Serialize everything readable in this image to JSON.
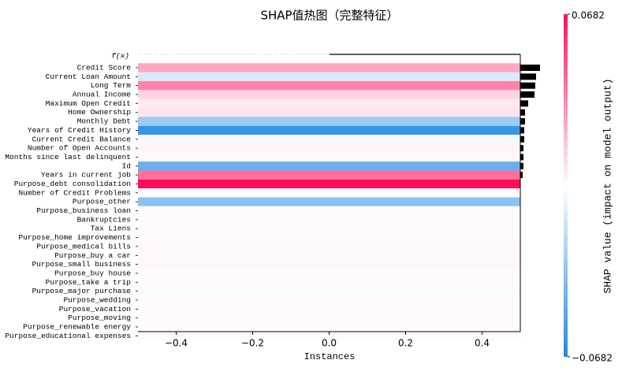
{
  "chart_data": {
    "type": "heatmap",
    "title": "SHAP值热图（完整特征）",
    "xlabel": "Instances",
    "colorbar_label": "SHAP value (impact on model output)",
    "fx_label": "f(x)",
    "features": [
      "Credit Score",
      "Current Loan Amount",
      "Long Term",
      "Annual Income",
      "Maximum Open Credit",
      "Home Ownership",
      "Monthly Debt",
      "Years of Credit History",
      "Current Credit Balance",
      "Number of Open Accounts",
      "Months since last delinquent",
      "Id",
      "Years in current job",
      "Purpose_debt consolidation",
      "Number of Credit Problems",
      "Purpose_other",
      "Purpose_business loan",
      "Bankruptcies",
      "Tax Liens",
      "Purpose_home improvements",
      "Purpose_medical bills",
      "Purpose_buy a car",
      "Purpose_small business",
      "Purpose_buy house",
      "Purpose_take a trip",
      "Purpose_major purchase",
      "Purpose_wedding",
      "Purpose_vacation",
      "Purpose_moving",
      "Purpose_renewable energy",
      "Purpose_educational expenses"
    ],
    "values": [
      0.025,
      -0.012,
      0.035,
      0.012,
      0.006,
      0.008,
      -0.03,
      -0.06,
      -0.003,
      0.003,
      0.002,
      -0.045,
      0.04,
      0.0682,
      0.001,
      -0.035,
      0.001,
      0.001,
      0.001,
      0.001,
      0.002,
      0.002,
      0.002,
      0.001,
      0.001,
      -0.002,
      0.001,
      0.001,
      0.001,
      0.001,
      0.001
    ],
    "importance": [
      0.025,
      0.02,
      0.019,
      0.018,
      0.01,
      0.006,
      0.006,
      0.005,
      0.005,
      0.004,
      0.004,
      0.004,
      0.003,
      0,
      0,
      0,
      0,
      0,
      0,
      0,
      0,
      0,
      0,
      0,
      0,
      0,
      0,
      0,
      0,
      0,
      0
    ],
    "xlim": [
      -0.5,
      0.5
    ],
    "xticks": [
      {
        "value": -0.4,
        "label": "−0.4"
      },
      {
        "value": -0.2,
        "label": "−0.2"
      },
      {
        "value": 0,
        "label": "0.0"
      },
      0.2,
      0.4
    ],
    "clim": [
      -0.0682,
      0.0682
    ],
    "cticks": [
      {
        "value": -0.0682,
        "label": "−0.0682"
      },
      0.0682
    ],
    "cmap": [
      "#1e88e5",
      "#ffffff",
      "#ff0d57"
    ]
  }
}
